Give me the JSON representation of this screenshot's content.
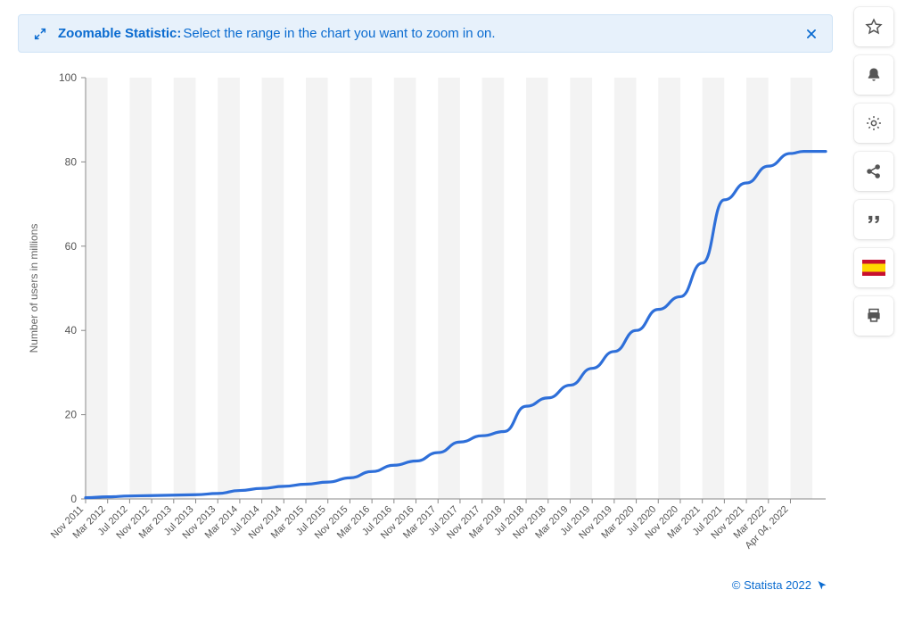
{
  "banner": {
    "title": "Zoomable Statistic:",
    "subtitle": "Select the range in the chart you want to zoom in on.",
    "bg_color": "#e7f1fb",
    "border_color": "#cfe3f6",
    "text_color": "#0a6bd0"
  },
  "chart": {
    "type": "line",
    "ylabel": "Number of users in millions",
    "ylim": [
      0,
      100
    ],
    "ytick_step": 20,
    "yticks": [
      0,
      20,
      40,
      60,
      80,
      100
    ],
    "x_labels": [
      "Nov 2011",
      "Mar 2012",
      "Jul 2012",
      "Nov 2012",
      "Mar 2013",
      "Jul 2013",
      "Nov 2013",
      "Mar 2014",
      "Jul 2014",
      "Nov 2014",
      "Mar 2015",
      "Jul 2015",
      "Nov 2015",
      "Mar 2016",
      "Jul 2016",
      "Nov 2016",
      "Mar 2017",
      "Jul 2017",
      "Nov 2017",
      "Mar 2018",
      "Jul 2018",
      "Nov 2018",
      "Mar 2019",
      "Jul 2019",
      "Nov 2019",
      "Mar 2020",
      "Jul 2020",
      "Nov 2020",
      "Mar 2021",
      "Jul 2021",
      "Nov 2021",
      "Mar 2022",
      "Apr 04, 2022"
    ],
    "values": [
      0.3,
      0.5,
      0.7,
      0.8,
      0.9,
      1.0,
      1.3,
      2.0,
      2.5,
      3.0,
      3.5,
      4.0,
      5.0,
      6.5,
      8.0,
      9.0,
      11.0,
      13.5,
      15.0,
      16.0,
      22.0,
      24.0,
      27.0,
      31.0,
      35.0,
      40.0,
      45.0,
      48.0,
      56.0,
      71.0,
      75.0,
      79.0,
      82.0
    ],
    "end_plateau_value": 82.5,
    "line_color": "#2e6fd9",
    "line_width": 3.2,
    "grid_stripe_color": "#f3f3f3",
    "grid_stripe_alt": "#ffffff",
    "background_color": "#ffffff",
    "axis_color": "#888888",
    "axis_width": 1,
    "label_fontsize": 12,
    "tick_fontsize": 12,
    "xtick_fontsize": 11,
    "xtick_rotate_deg": -45
  },
  "credit": {
    "text": "© Statista 2022",
    "color": "#0a6bd0"
  },
  "toolbar": {
    "items": [
      {
        "name": "star-icon"
      },
      {
        "name": "bell-icon"
      },
      {
        "name": "gear-icon"
      },
      {
        "name": "share-icon"
      },
      {
        "name": "quote-icon"
      },
      {
        "name": "flag-spain-icon"
      },
      {
        "name": "print-icon"
      }
    ]
  }
}
